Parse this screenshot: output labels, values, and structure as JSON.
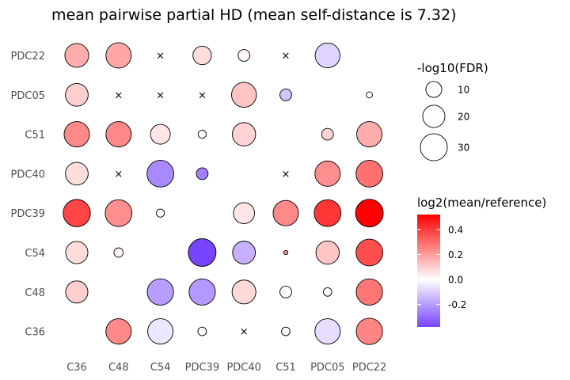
{
  "chart_data": {
    "type": "dot-matrix",
    "title": "mean pairwise partial HD (mean self-distance is 7.32)",
    "xlabel": "",
    "ylabel": "",
    "x_categories": [
      "C36",
      "C48",
      "C54",
      "PDC39",
      "PDC40",
      "C51",
      "PDC05",
      "PDC22"
    ],
    "y_categories": [
      "PDC22",
      "PDC05",
      "C51",
      "PDC40",
      "PDC39",
      "C54",
      "C48",
      "C36"
    ],
    "size_legend": {
      "title": "-log10(FDR)",
      "values": [
        10,
        20,
        30
      ],
      "labels": [
        "10",
        "20",
        "30"
      ]
    },
    "color_legend": {
      "title": "log2(mean/reference)",
      "ticks": [
        0.4,
        0.2,
        0.0,
        -0.2
      ],
      "tick_labels": [
        "0.4",
        "0.2",
        "0.0",
        "-0.2"
      ],
      "range": [
        -0.38,
        0.52
      ],
      "low_color": "#7744ff",
      "mid_color": "#ffffff",
      "high_color": "#ff0000"
    },
    "grid": false,
    "cells": [
      {
        "y": "PDC22",
        "x": "C36",
        "size": 22,
        "value": 0.17
      },
      {
        "y": "PDC22",
        "x": "C48",
        "size": 25,
        "value": 0.18
      },
      {
        "y": "PDC22",
        "x": "C54",
        "marker": "cross"
      },
      {
        "y": "PDC22",
        "x": "PDC39",
        "size": 13,
        "value": 0.07
      },
      {
        "y": "PDC22",
        "x": "PDC40",
        "size": 5,
        "value": 0.02
      },
      {
        "y": "PDC22",
        "x": "C51",
        "marker": "cross"
      },
      {
        "y": "PDC22",
        "x": "PDC05",
        "size": 24,
        "value": -0.09
      },
      {
        "y": "PDC05",
        "x": "C36",
        "size": 20,
        "value": 0.1
      },
      {
        "y": "PDC05",
        "x": "C48",
        "marker": "cross"
      },
      {
        "y": "PDC05",
        "x": "C54",
        "marker": "cross"
      },
      {
        "y": "PDC05",
        "x": "PDC39",
        "marker": "cross"
      },
      {
        "y": "PDC05",
        "x": "PDC40",
        "size": 24,
        "value": 0.12
      },
      {
        "y": "PDC05",
        "x": "C51",
        "size": 5,
        "value": -0.12
      },
      {
        "y": "PDC05",
        "x": "PDC22",
        "size": 1.2,
        "value": 0.0
      },
      {
        "y": "C51",
        "x": "C36",
        "size": 25,
        "value": 0.24
      },
      {
        "y": "C51",
        "x": "C48",
        "size": 25,
        "value": 0.24
      },
      {
        "y": "C51",
        "x": "C54",
        "size": 15,
        "value": 0.05
      },
      {
        "y": "C51",
        "x": "PDC39",
        "size": 2.2,
        "value": 0.0
      },
      {
        "y": "C51",
        "x": "PDC40",
        "size": 21,
        "value": 0.09
      },
      {
        "y": "C51",
        "x": "PDC05",
        "size": 5,
        "value": 0.09
      },
      {
        "y": "C51",
        "x": "PDC22",
        "size": 25,
        "value": 0.17
      },
      {
        "y": "PDC40",
        "x": "C36",
        "size": 20,
        "value": 0.07
      },
      {
        "y": "PDC40",
        "x": "C48",
        "marker": "cross"
      },
      {
        "y": "PDC40",
        "x": "C54",
        "size": 28,
        "value": -0.24
      },
      {
        "y": "PDC40",
        "x": "PDC39",
        "size": 5,
        "value": -0.26
      },
      {
        "y": "PDC40",
        "x": "C51",
        "marker": "cross"
      },
      {
        "y": "PDC40",
        "x": "PDC05",
        "size": 25,
        "value": 0.23
      },
      {
        "y": "PDC40",
        "x": "PDC22",
        "size": 28,
        "value": 0.29
      },
      {
        "y": "PDC39",
        "x": "C36",
        "size": 29,
        "value": 0.38
      },
      {
        "y": "PDC39",
        "x": "C48",
        "size": 28,
        "value": 0.23
      },
      {
        "y": "PDC39",
        "x": "C54",
        "size": 2.2,
        "value": 0.0
      },
      {
        "y": "PDC39",
        "x": "PDC40",
        "size": 17,
        "value": 0.05
      },
      {
        "y": "PDC39",
        "x": "C51",
        "size": 25,
        "value": 0.24
      },
      {
        "y": "PDC39",
        "x": "PDC05",
        "size": 28,
        "value": 0.41
      },
      {
        "y": "PDC39",
        "x": "PDC22",
        "size": 30,
        "value": 0.52
      },
      {
        "y": "C54",
        "x": "C36",
        "size": 19,
        "value": 0.07
      },
      {
        "y": "C54",
        "x": "C48",
        "size": 3,
        "value": 0.02
      },
      {
        "y": "C54",
        "x": "PDC39",
        "size": 30,
        "value": -0.38
      },
      {
        "y": "C54",
        "x": "PDC40",
        "size": 20,
        "value": -0.16
      },
      {
        "y": "C54",
        "x": "C51",
        "size": 0.5,
        "value": 0.22
      },
      {
        "y": "C54",
        "x": "PDC05",
        "size": 21,
        "value": 0.12
      },
      {
        "y": "C54",
        "x": "PDC22",
        "size": 28,
        "value": 0.36
      },
      {
        "y": "C48",
        "x": "C36",
        "size": 19,
        "value": 0.1
      },
      {
        "y": "C48",
        "x": "C54",
        "size": 27,
        "value": -0.2
      },
      {
        "y": "C48",
        "x": "PDC39",
        "size": 27,
        "value": -0.21
      },
      {
        "y": "C48",
        "x": "PDC40",
        "size": 22,
        "value": 0.08
      },
      {
        "y": "C48",
        "x": "C51",
        "size": 5,
        "value": 0.01
      },
      {
        "y": "C48",
        "x": "PDC05",
        "size": 2.5,
        "value": 0.01
      },
      {
        "y": "C48",
        "x": "PDC22",
        "size": 27,
        "value": 0.28
      },
      {
        "y": "C36",
        "x": "C48",
        "size": 25,
        "value": 0.24
      },
      {
        "y": "C36",
        "x": "C54",
        "size": 25,
        "value": -0.05
      },
      {
        "y": "C36",
        "x": "PDC39",
        "size": 2.5,
        "value": 0.0
      },
      {
        "y": "C36",
        "x": "PDC40",
        "marker": "cross"
      },
      {
        "y": "C36",
        "x": "C51",
        "size": 2.5,
        "value": 0.0
      },
      {
        "y": "C36",
        "x": "PDC05",
        "size": 25,
        "value": -0.07
      },
      {
        "y": "C36",
        "x": "PDC22",
        "size": 27,
        "value": 0.25
      }
    ]
  }
}
